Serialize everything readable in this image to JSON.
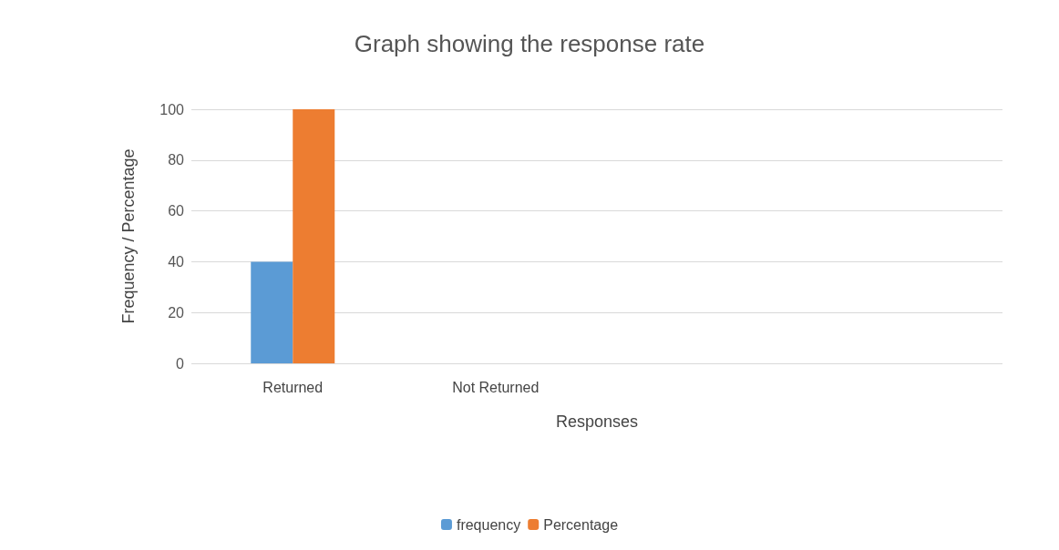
{
  "chart_data": {
    "type": "bar",
    "title": "Graph showing the response rate",
    "xlabel": "Responses",
    "ylabel": "Frequency / Percentage",
    "categories": [
      "Returned",
      "Not Returned",
      null,
      null
    ],
    "series": [
      {
        "name": "frequency",
        "color": "#5b9bd5",
        "values": [
          40,
          0,
          null,
          null
        ]
      },
      {
        "name": "Percentage",
        "color": "#ed7d31",
        "values": [
          100,
          0,
          null,
          null
        ]
      }
    ],
    "ylim": [
      0,
      100
    ],
    "yticks": [
      0,
      20,
      40,
      60,
      80,
      100
    ],
    "grid": "y",
    "legend": "bottom"
  }
}
